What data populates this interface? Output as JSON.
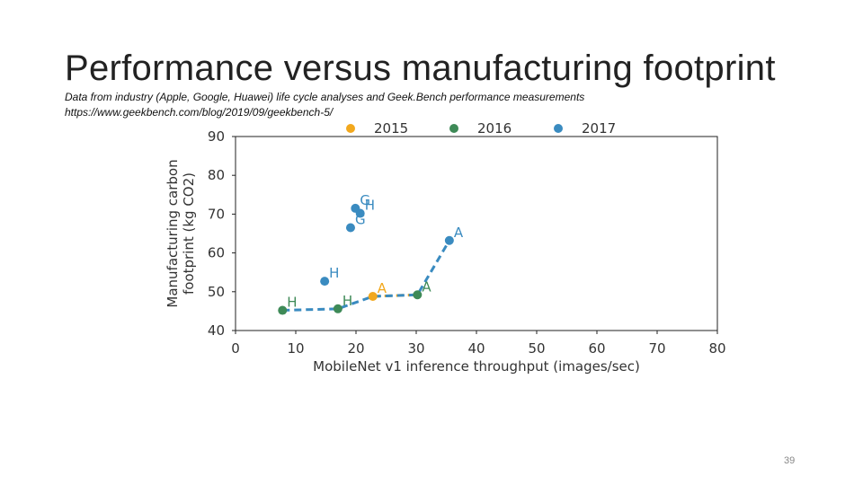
{
  "slide": {
    "title": "Performance versus manufacturing footprint",
    "subtitle": "Data from industry (Apple, Google, Huawei) life cycle analyses and Geek.Bench performance measurements",
    "source": "https://www.geekbench.com/blog/2019/09/geekbench-5/",
    "page_number": "39"
  },
  "chart_data": {
    "type": "scatter",
    "xlabel": "MobileNet v1 inference throughput (images/sec)",
    "ylabel_lines": [
      "Manufacturing carbon",
      "footprint (kg CO2)"
    ],
    "xlim": [
      0,
      80
    ],
    "ylim": [
      40,
      90
    ],
    "xticks": [
      "0",
      "10",
      "20",
      "30",
      "40",
      "50",
      "60",
      "70",
      "80"
    ],
    "yticks": [
      "40",
      "50",
      "60",
      "70",
      "80",
      "90"
    ],
    "legend_position": "top",
    "series": [
      {
        "name": "2015",
        "color": "#f2a81d",
        "points": [
          {
            "x": 22.8,
            "y": 48.8,
            "label": "A"
          }
        ]
      },
      {
        "name": "2016",
        "color": "#3e8a57",
        "points": [
          {
            "x": 7.8,
            "y": 45.2,
            "label": "H"
          },
          {
            "x": 17.0,
            "y": 45.6,
            "label": "H"
          },
          {
            "x": 30.2,
            "y": 49.2,
            "label": "A"
          }
        ]
      },
      {
        "name": "2017",
        "color": "#3a8bc0",
        "points": [
          {
            "x": 14.8,
            "y": 52.7,
            "label": "H"
          },
          {
            "x": 19.1,
            "y": 66.5,
            "label": "G"
          },
          {
            "x": 19.9,
            "y": 71.5,
            "label": "G"
          },
          {
            "x": 20.7,
            "y": 70.2,
            "label": "H"
          },
          {
            "x": 35.5,
            "y": 63.2,
            "label": "A"
          }
        ]
      }
    ],
    "trend_lines": [
      {
        "color": "#f2a81d",
        "points": [
          [
            22.8,
            48.8
          ],
          [
            30.2,
            49.2
          ]
        ]
      },
      {
        "color": "#3a8bc0",
        "points": [
          [
            7.8,
            45.2
          ],
          [
            17.0,
            45.6
          ],
          [
            22.8,
            48.8
          ],
          [
            30.2,
            49.2
          ],
          [
            35.5,
            63.2
          ]
        ]
      }
    ]
  }
}
